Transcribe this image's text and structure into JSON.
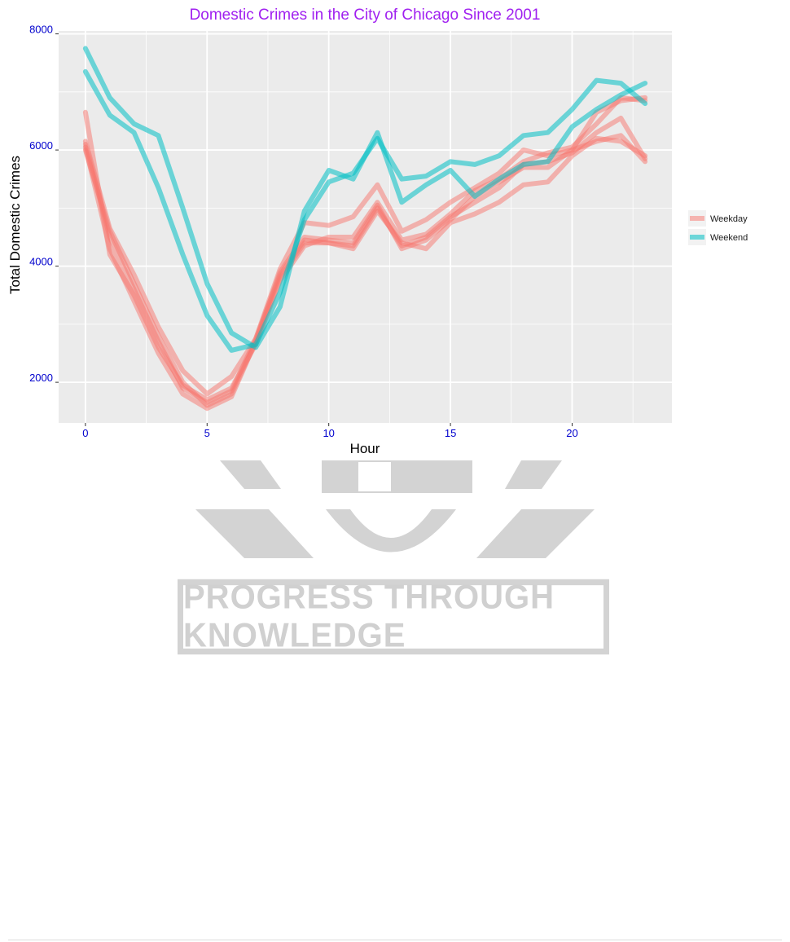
{
  "chart_data": {
    "type": "line",
    "title": "Domestic Crimes in the City of Chicago Since 2001",
    "xlabel": "Hour",
    "ylabel": "Total Domestic Crimes",
    "xlim": [
      -1.1,
      24.1
    ],
    "ylim": [
      1300,
      8050
    ],
    "x_ticks": [
      0,
      5,
      10,
      15,
      20
    ],
    "y_ticks": [
      2000,
      4000,
      6000,
      8000
    ],
    "x_tick_labels": [
      "0",
      "5",
      "10",
      "15",
      "20"
    ],
    "y_tick_labels": [
      "2000",
      "4000",
      "6000",
      "8000"
    ],
    "grid": true,
    "legend_position": "right",
    "x": [
      0,
      1,
      2,
      3,
      4,
      5,
      6,
      7,
      8,
      9,
      10,
      11,
      12,
      13,
      14,
      15,
      16,
      17,
      18,
      19,
      20,
      21,
      22,
      23
    ],
    "series": [
      {
        "name": "Weekday",
        "group": "Weekday",
        "values": [
          6000,
          4600,
          3700,
          2800,
          2000,
          1600,
          1800,
          2700,
          3900,
          4500,
          4450,
          4400,
          5050,
          4300,
          4450,
          4800,
          5200,
          5450,
          5700,
          5700,
          6000,
          6150,
          6250,
          5800
        ]
      },
      {
        "name": "Weekday",
        "group": "Weekday",
        "values": [
          6100,
          4500,
          3600,
          2700,
          1900,
          1650,
          1850,
          2750,
          3850,
          4450,
          4400,
          4350,
          5000,
          4350,
          4500,
          4850,
          5100,
          5350,
          5750,
          5800,
          5950,
          6300,
          6550,
          5850
        ]
      },
      {
        "name": "Weekday",
        "group": "Weekday",
        "values": [
          6050,
          4300,
          3400,
          2500,
          1800,
          1550,
          1750,
          2700,
          3800,
          4400,
          4400,
          4300,
          4950,
          4400,
          4300,
          4750,
          4900,
          5100,
          5400,
          5450,
          5900,
          6200,
          6150,
          5900
        ]
      },
      {
        "name": "Weekday",
        "group": "Weekday",
        "values": [
          6650,
          4200,
          3500,
          2600,
          1950,
          1700,
          1900,
          2650,
          3750,
          4350,
          4500,
          4500,
          5100,
          4450,
          4550,
          4900,
          5300,
          5500,
          5800,
          5950,
          6050,
          6450,
          6900,
          6850
        ]
      },
      {
        "name": "Weekday",
        "group": "Weekday",
        "values": [
          6150,
          4650,
          3850,
          2950,
          2200,
          1800,
          2100,
          2750,
          3950,
          4750,
          4700,
          4850,
          5400,
          4600,
          4800,
          5100,
          5350,
          5600,
          6000,
          5900,
          6000,
          6650,
          6850,
          6900
        ]
      },
      {
        "name": "Weekend",
        "group": "Weekend",
        "values": [
          7350,
          6600,
          6300,
          5350,
          4200,
          3150,
          2550,
          2650,
          3550,
          4800,
          5450,
          5600,
          6200,
          5500,
          5550,
          5800,
          5750,
          5900,
          6250,
          6300,
          6700,
          7200,
          7150,
          6800
        ]
      },
      {
        "name": "Weekend",
        "group": "Weekend",
        "values": [
          7750,
          6900,
          6450,
          6250,
          5000,
          3700,
          2850,
          2600,
          3300,
          4950,
          5650,
          5500,
          6300,
          5100,
          5400,
          5650,
          5200,
          5500,
          5750,
          5800,
          6400,
          6700,
          6950,
          7150
        ]
      }
    ],
    "legend": [
      {
        "label": "Weekday",
        "color": "#F8766D"
      },
      {
        "label": "Weekend",
        "color": "#00BFC4"
      }
    ],
    "colors": {
      "Weekday": "#F8766D",
      "Weekend": "#00BFC4",
      "panel_background": "#EBEBEB",
      "grid": "#FFFFFF",
      "title": "#A020F0",
      "tick_labels": "#0000CD"
    }
  },
  "watermark": {
    "text": "PROGRESS THROUGH KNOWLEDGE"
  }
}
